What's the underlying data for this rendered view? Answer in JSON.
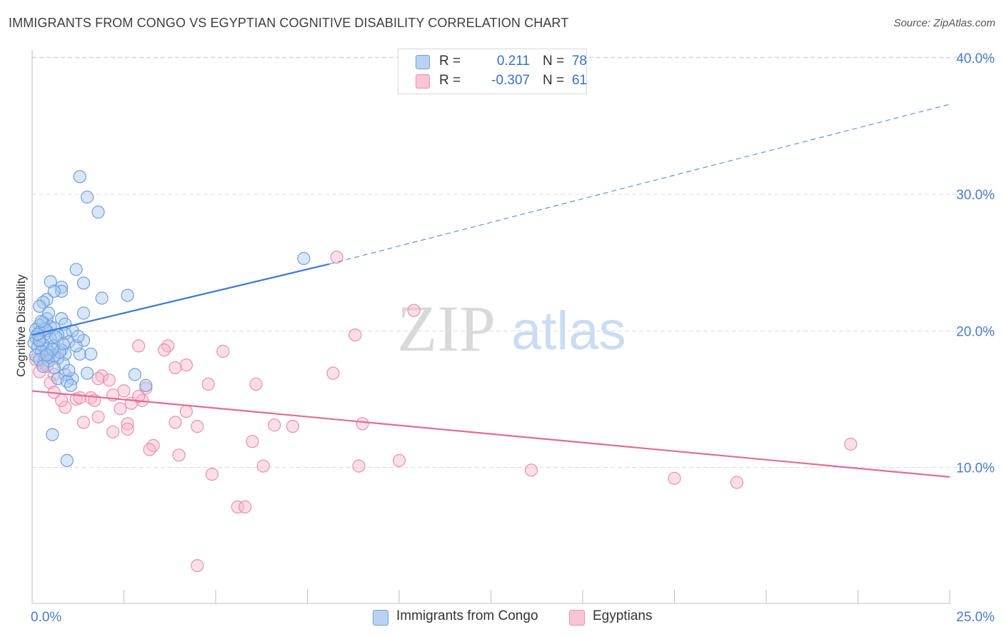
{
  "title": "IMMIGRANTS FROM CONGO VS EGYPTIAN COGNITIVE DISABILITY CORRELATION CHART",
  "source": "Source: ZipAtlas.com",
  "watermark": {
    "zip": "ZIP",
    "atlas": "atlas"
  },
  "legend": {
    "series1": {
      "r_label": "R =",
      "r_value": "0.211",
      "n_label": "N =",
      "n_value": "78"
    },
    "series2": {
      "r_label": "R =",
      "r_value": "-0.307",
      "n_label": "N =",
      "n_value": "61"
    }
  },
  "bottom_legend": {
    "series1": "Immigrants from Congo",
    "series2": "Egyptians"
  },
  "colors": {
    "congo_fill": "#a9c8f0",
    "congo_stroke": "#6f9fdc",
    "congo_line": "#3b78d4",
    "egypt_fill": "#f6b8cc",
    "egypt_stroke": "#ec8fae",
    "egypt_line": "#e46a98",
    "grid": "#dddddd",
    "tick_text": "#4a7cc9"
  },
  "chart_data": {
    "type": "scatter",
    "title": "IMMIGRANTS FROM CONGO VS EGYPTIAN COGNITIVE DISABILITY CORRELATION CHART",
    "xlabel": "",
    "ylabel": "Cognitive Disability",
    "xlim": [
      0,
      25
    ],
    "ylim": [
      0,
      41.5
    ],
    "x_tick_labels": [
      "0.0%",
      "25.0%"
    ],
    "y_ticks": [
      10,
      20,
      30,
      40
    ],
    "y_tick_labels": [
      "10.0%",
      "20.0%",
      "30.0%",
      "40.0%"
    ],
    "grid": "horizontal dashed",
    "legend_position": "top-center",
    "series": [
      {
        "name": "Immigrants from Congo",
        "R": 0.211,
        "N": 78,
        "trend": {
          "x": [
            0,
            8.1
          ],
          "y": [
            19.7,
            24.9
          ],
          "extended_to": [
            25,
            36.6
          ]
        },
        "points": [
          [
            1.3,
            31.3
          ],
          [
            1.5,
            29.8
          ],
          [
            1.8,
            28.7
          ],
          [
            7.4,
            25.3
          ],
          [
            1.2,
            24.5
          ],
          [
            0.5,
            23.6
          ],
          [
            1.4,
            23.5
          ],
          [
            0.8,
            23.2
          ],
          [
            0.8,
            22.9
          ],
          [
            0.6,
            22.9
          ],
          [
            2.6,
            22.6
          ],
          [
            1.9,
            22.4
          ],
          [
            0.4,
            22.3
          ],
          [
            0.3,
            22.1
          ],
          [
            0.2,
            21.8
          ],
          [
            1.4,
            21.3
          ],
          [
            0.4,
            20.9
          ],
          [
            0.8,
            20.9
          ],
          [
            0.3,
            20.6
          ],
          [
            0.9,
            20.5
          ],
          [
            0.2,
            20.4
          ],
          [
            0.5,
            20.3
          ],
          [
            0.6,
            20.2
          ],
          [
            0.1,
            20.1
          ],
          [
            0.4,
            20.0
          ],
          [
            1.1,
            20.0
          ],
          [
            0.2,
            19.9
          ],
          [
            0.9,
            19.8
          ],
          [
            0.7,
            19.7
          ],
          [
            0.3,
            19.6
          ],
          [
            0.1,
            19.5
          ],
          [
            0.5,
            19.4
          ],
          [
            1.4,
            19.3
          ],
          [
            0.2,
            19.2
          ],
          [
            1.0,
            19.2
          ],
          [
            0.05,
            19.1
          ],
          [
            0.3,
            19.0
          ],
          [
            0.6,
            18.9
          ],
          [
            0.15,
            18.8
          ],
          [
            0.4,
            18.7
          ],
          [
            0.8,
            18.6
          ],
          [
            0.25,
            18.5
          ],
          [
            0.5,
            18.4
          ],
          [
            0.9,
            18.3
          ],
          [
            1.3,
            18.3
          ],
          [
            1.6,
            18.3
          ],
          [
            0.1,
            18.2
          ],
          [
            0.6,
            18.2
          ],
          [
            0.35,
            18.1
          ],
          [
            0.7,
            18.0
          ],
          [
            0.2,
            17.9
          ],
          [
            0.45,
            17.8
          ],
          [
            0.85,
            17.6
          ],
          [
            0.3,
            17.4
          ],
          [
            1.5,
            16.9
          ],
          [
            0.9,
            16.8
          ],
          [
            2.8,
            16.8
          ],
          [
            0.7,
            16.5
          ],
          [
            1.1,
            16.5
          ],
          [
            0.95,
            16.3
          ],
          [
            3.1,
            16.0
          ],
          [
            1.05,
            16.0
          ],
          [
            0.55,
            12.4
          ],
          [
            0.95,
            10.5
          ],
          [
            0.2,
            19.3
          ],
          [
            0.65,
            19.55
          ],
          [
            1.2,
            18.9
          ],
          [
            0.35,
            20.15
          ],
          [
            0.75,
            18.45
          ],
          [
            0.15,
            19.75
          ],
          [
            0.55,
            18.65
          ],
          [
            1.0,
            17.1
          ],
          [
            0.25,
            20.7
          ],
          [
            0.45,
            21.3
          ],
          [
            0.85,
            19.05
          ],
          [
            0.6,
            17.3
          ],
          [
            1.25,
            19.6
          ],
          [
            0.4,
            18.25
          ]
        ]
      },
      {
        "name": "Egyptians",
        "R": -0.307,
        "N": 61,
        "trend": {
          "x": [
            0,
            25
          ],
          "y": [
            15.6,
            9.3
          ]
        },
        "points": [
          [
            8.3,
            25.4
          ],
          [
            10.4,
            21.5
          ],
          [
            8.8,
            19.7
          ],
          [
            2.9,
            18.9
          ],
          [
            3.7,
            18.9
          ],
          [
            3.6,
            18.6
          ],
          [
            5.2,
            18.5
          ],
          [
            0.1,
            17.9
          ],
          [
            0.3,
            17.6
          ],
          [
            4.2,
            17.5
          ],
          [
            3.9,
            17.3
          ],
          [
            0.2,
            17.0
          ],
          [
            8.2,
            16.9
          ],
          [
            0.6,
            16.8
          ],
          [
            1.9,
            16.7
          ],
          [
            1.8,
            16.5
          ],
          [
            2.1,
            16.4
          ],
          [
            0.5,
            16.2
          ],
          [
            4.8,
            16.1
          ],
          [
            6.1,
            16.1
          ],
          [
            3.1,
            15.8
          ],
          [
            2.5,
            15.6
          ],
          [
            0.6,
            15.5
          ],
          [
            2.2,
            15.3
          ],
          [
            1.6,
            15.1
          ],
          [
            1.2,
            15.0
          ],
          [
            1.7,
            14.9
          ],
          [
            3.0,
            14.9
          ],
          [
            2.7,
            14.7
          ],
          [
            0.9,
            14.4
          ],
          [
            2.4,
            14.3
          ],
          [
            4.2,
            14.1
          ],
          [
            1.8,
            13.7
          ],
          [
            1.4,
            13.3
          ],
          [
            3.9,
            13.3
          ],
          [
            6.6,
            13.1
          ],
          [
            7.1,
            13.0
          ],
          [
            9.0,
            13.2
          ],
          [
            4.5,
            13.0
          ],
          [
            2.6,
            13.2
          ],
          [
            2.6,
            12.8
          ],
          [
            2.2,
            12.6
          ],
          [
            6.0,
            11.9
          ],
          [
            3.3,
            11.6
          ],
          [
            3.2,
            11.3
          ],
          [
            22.3,
            11.7
          ],
          [
            4.0,
            10.9
          ],
          [
            10.0,
            10.5
          ],
          [
            6.3,
            10.1
          ],
          [
            8.9,
            10.1
          ],
          [
            13.6,
            9.8
          ],
          [
            4.9,
            9.5
          ],
          [
            17.5,
            9.2
          ],
          [
            19.2,
            8.9
          ],
          [
            5.6,
            7.1
          ],
          [
            5.8,
            7.1
          ],
          [
            4.5,
            2.8
          ],
          [
            0.4,
            17.4
          ],
          [
            1.3,
            15.1
          ],
          [
            2.9,
            15.2
          ],
          [
            0.8,
            14.9
          ]
        ]
      }
    ]
  }
}
